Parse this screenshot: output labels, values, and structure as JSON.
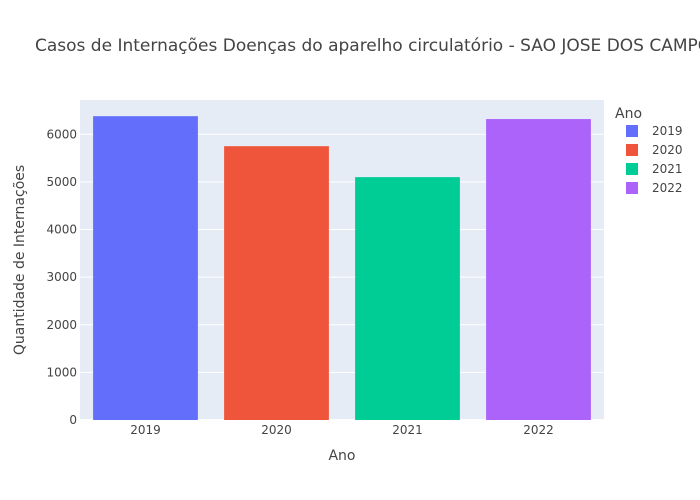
{
  "chart_data": {
    "type": "bar",
    "title": "Casos de Internações Doenças do aparelho circulatório - SAO JOSE DOS CAMPOS",
    "xlabel": "Ano",
    "ylabel": "Quantidade de Internações",
    "categories": [
      "2019",
      "2020",
      "2021",
      "2022"
    ],
    "values": [
      6380,
      5750,
      5100,
      6320
    ],
    "colors": [
      "#636efa",
      "#ef553b",
      "#00cc96",
      "#ab63fa"
    ],
    "ylim": [
      0,
      6720
    ],
    "yticks": [
      0,
      1000,
      2000,
      3000,
      4000,
      5000,
      6000
    ],
    "grid": true,
    "legend": {
      "title": "Ano",
      "position": "top-right",
      "entries": [
        "2019",
        "2020",
        "2021",
        "2022"
      ]
    },
    "plot_background": "#e5ecf6"
  }
}
